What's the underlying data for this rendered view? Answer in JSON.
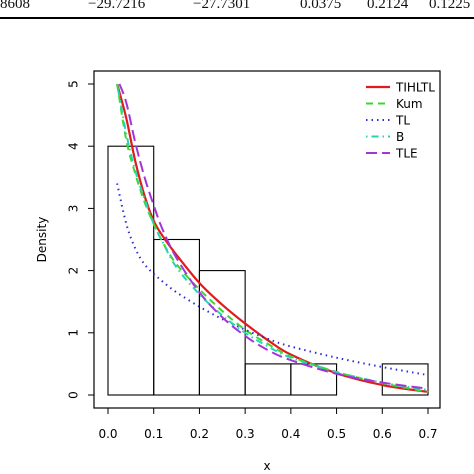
{
  "table_row": {
    "cells": [
      "8608",
      "−29.7216",
      "−27.7301",
      "0.0375",
      "0.2124",
      "0.1225"
    ]
  },
  "chart_data": {
    "type": "histogram-with-density-curves",
    "xlabel": "x",
    "ylabel": "Density",
    "xlim": [
      0.0,
      0.7
    ],
    "ylim": [
      0,
      5
    ],
    "x_ticks": [
      "0.0",
      "0.1",
      "0.2",
      "0.3",
      "0.4",
      "0.5",
      "0.6",
      "0.7"
    ],
    "y_ticks": [
      "0",
      "1",
      "2",
      "3",
      "4",
      "5"
    ],
    "legend_position": "top-right",
    "histogram": {
      "bins": [
        [
          0.0,
          0.1
        ],
        [
          0.1,
          0.2
        ],
        [
          0.2,
          0.3
        ],
        [
          0.3,
          0.4
        ],
        [
          0.4,
          0.5
        ],
        [
          0.5,
          0.6
        ],
        [
          0.6,
          0.7
        ]
      ],
      "density": [
        4.0,
        2.5,
        2.0,
        0.5,
        0.5,
        0.0,
        0.5
      ]
    },
    "series": [
      {
        "name": "TIHLTL",
        "color": "#e31a1c",
        "dash": "solid",
        "x": [
          0.02,
          0.04,
          0.06,
          0.08,
          0.1,
          0.12,
          0.15,
          0.2,
          0.25,
          0.3,
          0.35,
          0.4,
          0.5,
          0.6,
          0.7
        ],
        "y": [
          5.0,
          4.45,
          3.75,
          3.2,
          2.8,
          2.55,
          2.25,
          1.8,
          1.45,
          1.15,
          0.88,
          0.65,
          0.35,
          0.16,
          0.05
        ]
      },
      {
        "name": "Kum",
        "color": "#3dd62f",
        "dash": "dash",
        "x": [
          0.02,
          0.04,
          0.06,
          0.08,
          0.1,
          0.12,
          0.15,
          0.2,
          0.25,
          0.3,
          0.35,
          0.4,
          0.5,
          0.6,
          0.7
        ],
        "y": [
          5.0,
          4.1,
          3.55,
          3.1,
          2.75,
          2.45,
          2.1,
          1.7,
          1.35,
          1.05,
          0.82,
          0.62,
          0.37,
          0.19,
          0.05
        ]
      },
      {
        "name": "TL",
        "color": "#2d2dd6",
        "dash": "dot",
        "x": [
          0.02,
          0.04,
          0.06,
          0.08,
          0.1,
          0.12,
          0.15,
          0.2,
          0.25,
          0.3,
          0.35,
          0.4,
          0.5,
          0.6,
          0.7
        ],
        "y": [
          3.4,
          2.75,
          2.35,
          2.1,
          1.95,
          1.82,
          1.65,
          1.42,
          1.22,
          1.05,
          0.9,
          0.78,
          0.6,
          0.45,
          0.32
        ]
      },
      {
        "name": "B",
        "color": "#23d6b0",
        "dash": "dotdash",
        "x": [
          0.02,
          0.04,
          0.06,
          0.08,
          0.1,
          0.12,
          0.15,
          0.2,
          0.25,
          0.3,
          0.35,
          0.4,
          0.5,
          0.6,
          0.7
        ],
        "y": [
          5.0,
          4.2,
          3.6,
          3.15,
          2.75,
          2.45,
          2.05,
          1.62,
          1.28,
          1.0,
          0.78,
          0.6,
          0.37,
          0.2,
          0.08
        ]
      },
      {
        "name": "TLE",
        "color": "#a335d8",
        "dash": "longdash",
        "x": [
          0.025,
          0.04,
          0.06,
          0.08,
          0.1,
          0.12,
          0.15,
          0.2,
          0.25,
          0.3,
          0.35,
          0.4,
          0.5,
          0.6,
          0.7
        ],
        "y": [
          5.0,
          4.7,
          4.05,
          3.5,
          3.05,
          2.65,
          2.2,
          1.65,
          1.25,
          0.95,
          0.72,
          0.56,
          0.34,
          0.2,
          0.1
        ]
      }
    ]
  }
}
